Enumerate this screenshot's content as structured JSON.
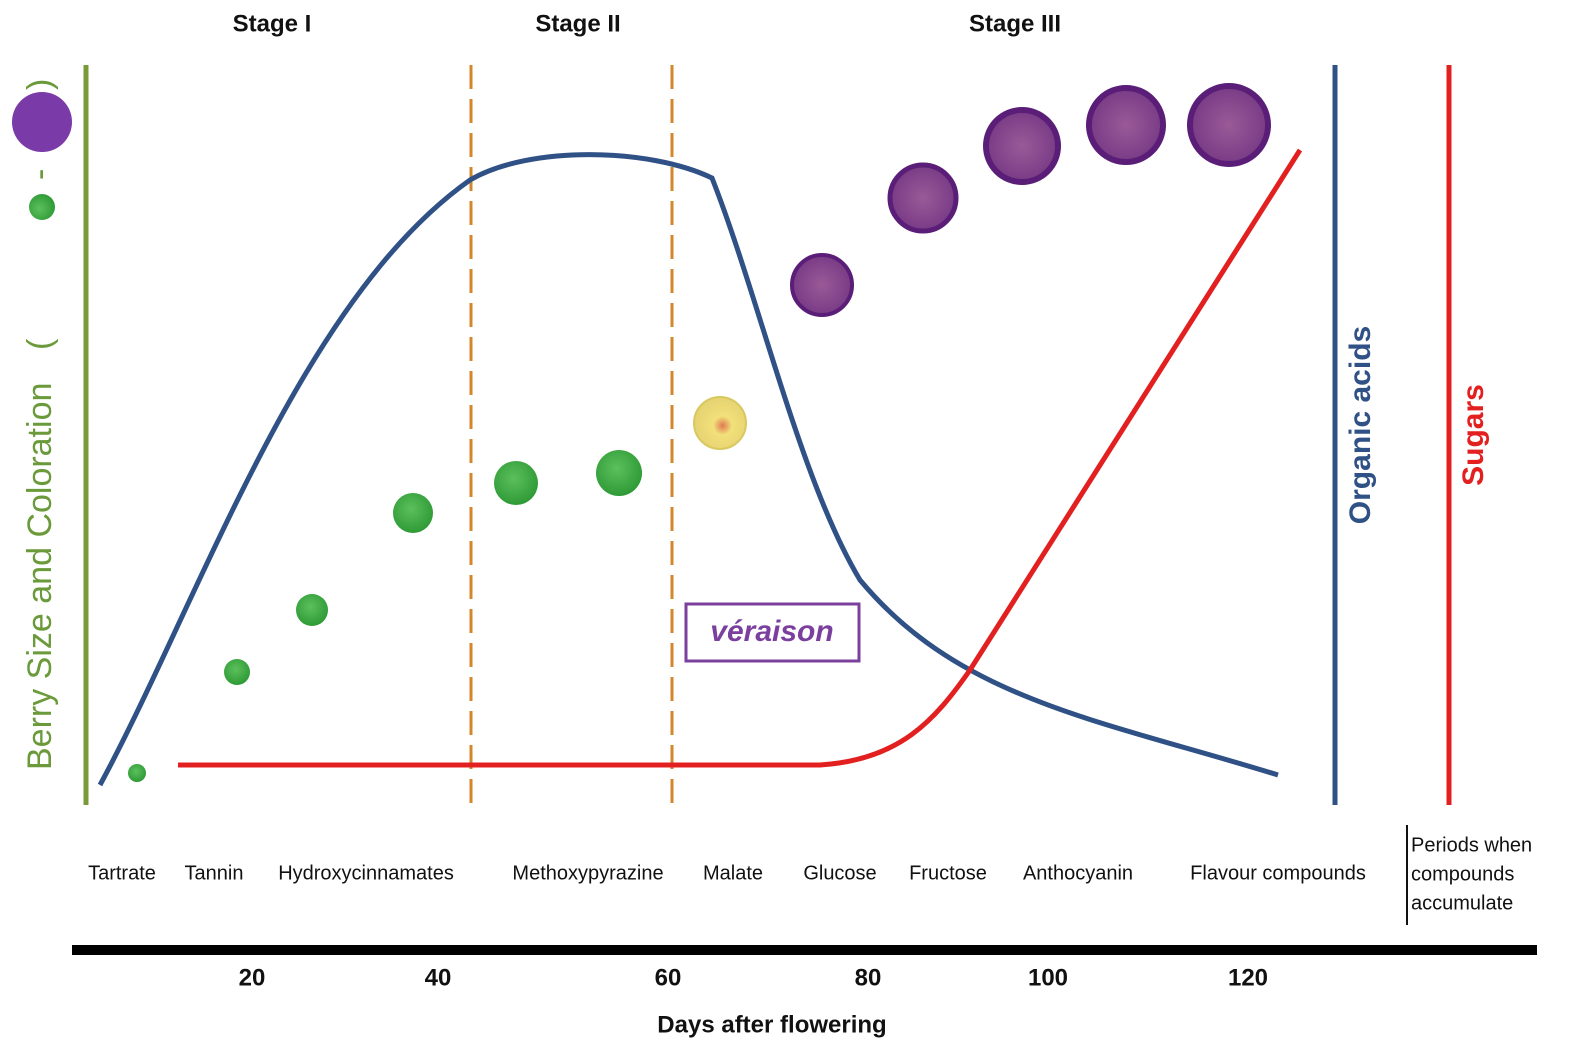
{
  "stages": [
    "Stage I",
    "Stage II",
    "Stage III"
  ],
  "left_label": {
    "text": "Berry Size and Coloration",
    "open": "(",
    "dash": "-",
    "close": ")"
  },
  "right_labels": [
    "Organic acids",
    "Sugars"
  ],
  "annotation": "véraison",
  "compounds": [
    "Tartrate",
    "Tannin",
    "Hydroxycinnamates",
    "Methoxypyrazine",
    "Malate",
    "Glucose",
    "Fructose",
    "Anthocyanin",
    "Flavour compounds"
  ],
  "compounds_note": [
    "Periods when",
    "compounds",
    "accumulate"
  ],
  "x_axis": {
    "title": "Days after flowering",
    "ticks": [
      20,
      40,
      60,
      80,
      100,
      120
    ]
  }
}
